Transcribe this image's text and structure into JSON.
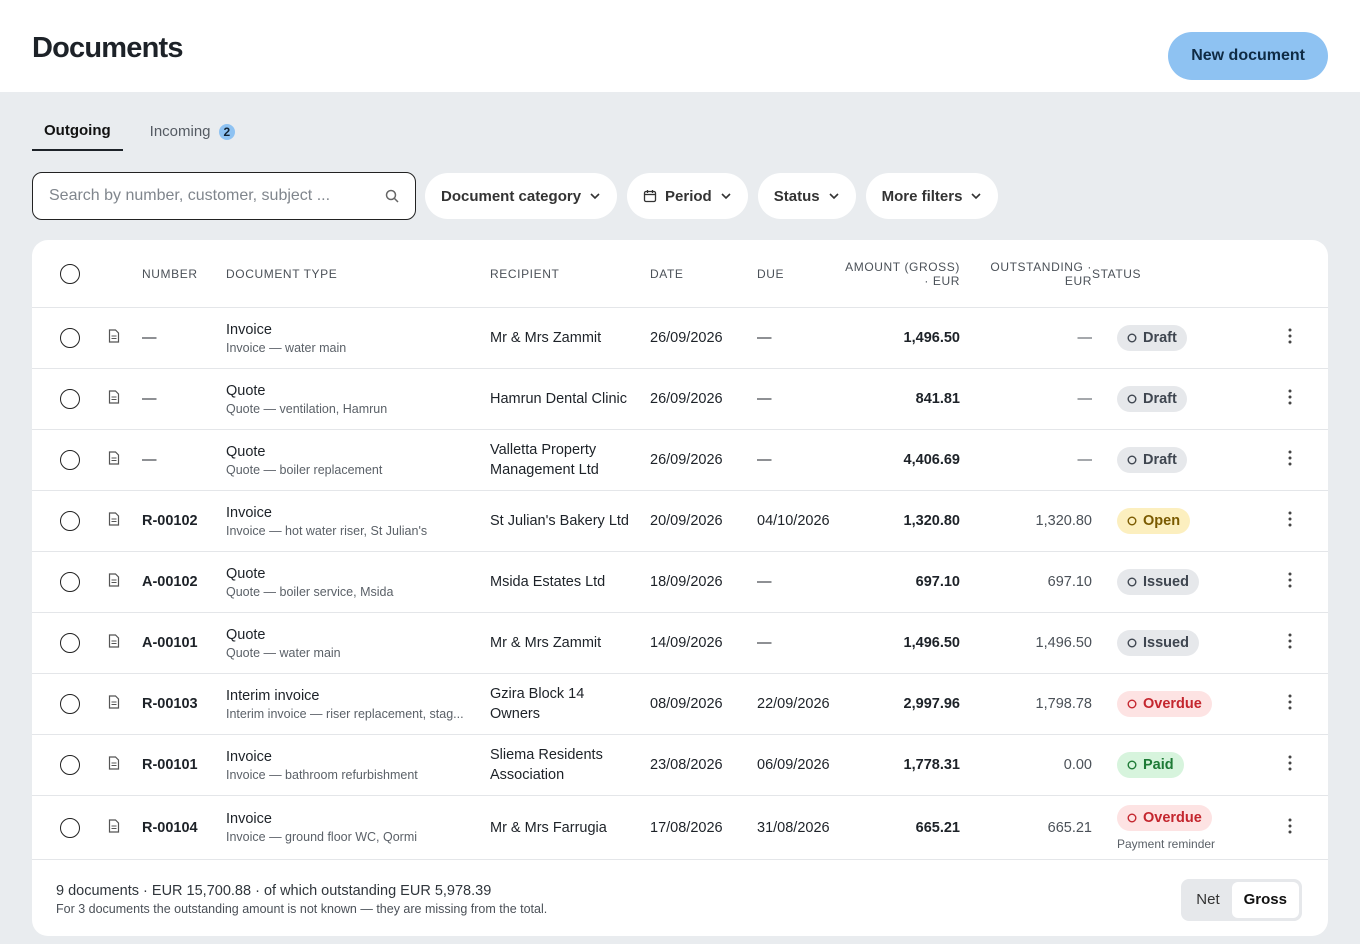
{
  "header": {
    "title": "Documents",
    "button": "New document"
  },
  "tabs": [
    {
      "label": "Outgoing",
      "active": true
    },
    {
      "label": "Incoming",
      "badge": "2",
      "active": false
    }
  ],
  "search": {
    "placeholder": "Search by number, customer, subject ..."
  },
  "filters": [
    "Document category",
    "Period",
    "Status",
    "More filters"
  ],
  "table": {
    "columns": [
      "NUMBER",
      "DOCUMENT TYPE",
      "RECIPIENT",
      "DATE",
      "DUE",
      "AMOUNT (GROSS) · EUR",
      "OUTSTANDING · EUR",
      "STATUS"
    ],
    "rows": [
      {
        "number": "—",
        "type": "Invoice",
        "subject": "Invoice — water main",
        "recipient": "Mr & Mrs Zammit",
        "date": "26/09/2026",
        "due": "—",
        "amount": "1,496.50",
        "outstanding": "—",
        "status": {
          "label": "Draft",
          "color": "#3f4650",
          "bg": "#e6e8eb"
        }
      },
      {
        "number": "—",
        "type": "Quote",
        "subject": "Quote — ventilation, Hamrun",
        "recipient": "Hamrun Dental Clinic",
        "date": "26/09/2026",
        "due": "—",
        "amount": "841.81",
        "outstanding": "—",
        "status": {
          "label": "Draft",
          "color": "#3f4650",
          "bg": "#e6e8eb"
        }
      },
      {
        "number": "—",
        "type": "Quote",
        "subject": "Quote — boiler replacement",
        "recipient": "Valletta Property Management Ltd",
        "date": "26/09/2026",
        "due": "—",
        "amount": "4,406.69",
        "outstanding": "—",
        "status": {
          "label": "Draft",
          "color": "#3f4650",
          "bg": "#e6e8eb"
        }
      },
      {
        "number": "R-00102",
        "type": "Invoice",
        "subject": "Invoice — hot water riser, St Julian's",
        "recipient": "St Julian's Bakery Ltd",
        "date": "20/09/2026",
        "due": "04/10/2026",
        "amount": "1,320.80",
        "outstanding": "1,320.80",
        "status": {
          "label": "Open",
          "color": "#7a5a00",
          "bg": "#fcefbf"
        }
      },
      {
        "number": "A-00102",
        "type": "Quote",
        "subject": "Quote — boiler service, Msida",
        "recipient": "Msida Estates Ltd",
        "date": "18/09/2026",
        "due": "—",
        "amount": "697.10",
        "outstanding": "697.10",
        "status": {
          "label": "Issued",
          "color": "#3f4650",
          "bg": "#e6e8eb"
        }
      },
      {
        "number": "A-00101",
        "type": "Quote",
        "subject": "Quote — water main",
        "recipient": "Mr & Mrs Zammit",
        "date": "14/09/2026",
        "due": "—",
        "amount": "1,496.50",
        "outstanding": "1,496.50",
        "status": {
          "label": "Issued",
          "color": "#3f4650",
          "bg": "#e6e8eb"
        }
      },
      {
        "number": "R-00103",
        "type": "Interim invoice",
        "subject": "Interim invoice — riser replacement, stag...",
        "recipient": "Gzira Block 14 Owners",
        "date": "08/09/2026",
        "due": "22/09/2026",
        "amount": "2,997.96",
        "outstanding": "1,798.78",
        "status": {
          "label": "Overdue",
          "color": "#c4262e",
          "bg": "#fde3e3"
        }
      },
      {
        "number": "R-00101",
        "type": "Invoice",
        "subject": "Invoice — bathroom refurbishment",
        "recipient": "Sliema Residents Association",
        "date": "23/08/2026",
        "due": "06/09/2026",
        "amount": "1,778.31",
        "outstanding": "0.00",
        "status": {
          "label": "Paid",
          "color": "#1e7a36",
          "bg": "#d7f4dd"
        }
      },
      {
        "number": "R-00104",
        "type": "Invoice",
        "subject": "Invoice — ground floor WC, Qormi",
        "recipient": "Mr & Mrs Farrugia",
        "date": "17/08/2026",
        "due": "31/08/2026",
        "amount": "665.21",
        "outstanding": "665.21",
        "status": {
          "label": "Overdue",
          "color": "#c4262e",
          "bg": "#fde3e3",
          "note": "Payment reminder"
        }
      }
    ]
  },
  "footer": {
    "summary": "9 documents · EUR 15,700.88 · of which outstanding EUR 5,978.39",
    "note": "For 3 documents the outstanding amount is not known — they are missing from the total.",
    "toggle": [
      {
        "label": "Net",
        "active": false
      },
      {
        "label": "Gross",
        "active": true
      }
    ]
  }
}
